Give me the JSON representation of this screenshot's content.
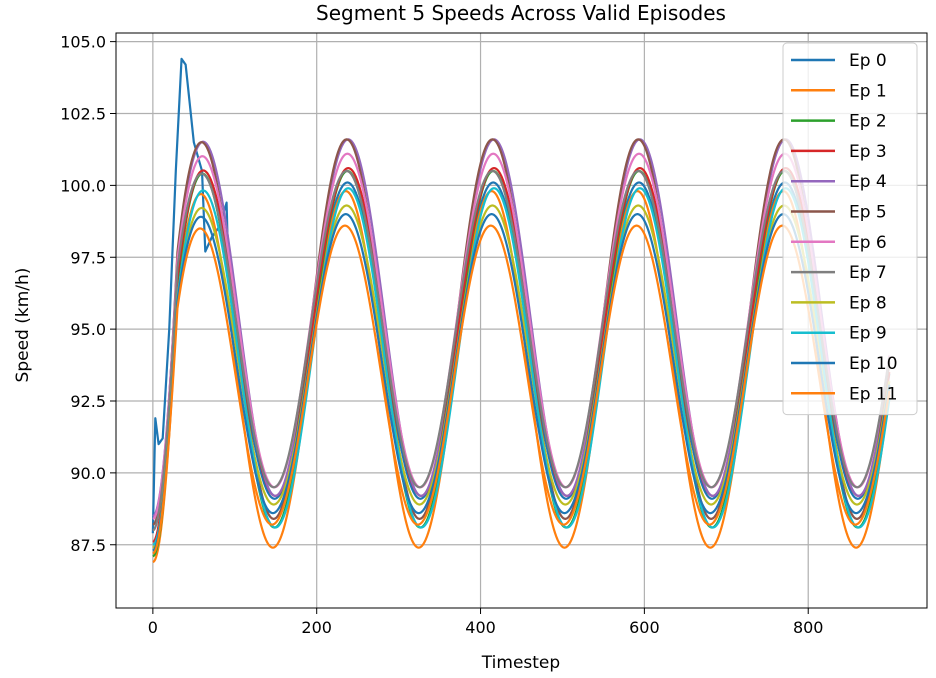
{
  "chart_data": {
    "type": "line",
    "title": "Segment 5 Speeds Across Valid Episodes",
    "xlabel": "Timestep",
    "ylabel": "Speed (km/h)",
    "xlim": [
      -45,
      945
    ],
    "ylim": [
      85.3,
      105.3
    ],
    "xticks": [
      0,
      200,
      400,
      600,
      800
    ],
    "xtick_labels": [
      "0",
      "200",
      "400",
      "600",
      "800"
    ],
    "yticks": [
      87.5,
      90.0,
      92.5,
      95.0,
      97.5,
      100.0,
      102.5,
      105.0
    ],
    "ytick_labels": [
      "87.5",
      "90.0",
      "92.5",
      "95.0",
      "97.5",
      "100.0",
      "102.5",
      "105.0"
    ],
    "grid": true,
    "legend_position": "top-right",
    "period": 178,
    "n_points": 900,
    "series": [
      {
        "name": "Ep 0",
        "color": "#1f77b4",
        "start": 87.9,
        "base": 94.6,
        "amp": 5.5,
        "phase": 0
      },
      {
        "name": "Ep 1",
        "color": "#ff7f0e",
        "start": 86.9,
        "base": 93.6,
        "amp": 6.2,
        "phase": 2
      },
      {
        "name": "Ep 2",
        "color": "#2ca02c",
        "start": 87.1,
        "base": 94.3,
        "amp": 6.2,
        "phase": 0
      },
      {
        "name": "Ep 3",
        "color": "#d62728",
        "start": 87.6,
        "base": 94.9,
        "amp": 5.7,
        "phase": -1
      },
      {
        "name": "Ep 4",
        "color": "#9467bd",
        "start": 88.5,
        "base": 95.4,
        "amp": 6.2,
        "phase": -1
      },
      {
        "name": "Ep 5",
        "color": "#8c564b",
        "start": 88.2,
        "base": 95.0,
        "amp": 6.6,
        "phase": 1
      },
      {
        "name": "Ep 6",
        "color": "#e377c2",
        "start": 88.4,
        "base": 95.3,
        "amp": 5.8,
        "phase": 0
      },
      {
        "name": "Ep 7",
        "color": "#7f7f7f",
        "start": 88.0,
        "base": 95.0,
        "amp": 5.5,
        "phase": 1
      },
      {
        "name": "Ep 8",
        "color": "#bcbd22",
        "start": 87.4,
        "base": 94.1,
        "amp": 5.2,
        "phase": 1
      },
      {
        "name": "Ep 9",
        "color": "#17becf",
        "start": 87.5,
        "base": 94.0,
        "amp": 5.9,
        "phase": -1
      },
      {
        "name": "Ep 10",
        "color": "#1f77b4",
        "start": 87.3,
        "base": 93.8,
        "amp": 5.2,
        "phase": 2
      },
      {
        "name": "Ep 11",
        "color": "#ff7f0e",
        "start": 87.2,
        "base": 93.4,
        "amp": 5.2,
        "phase": 3
      }
    ],
    "ep0_overrides": [
      [
        0,
        87.9
      ],
      [
        3,
        91.9
      ],
      [
        7,
        91.0
      ],
      [
        12,
        91.2
      ],
      [
        20,
        95.0
      ],
      [
        28,
        100.5
      ],
      [
        35,
        104.4
      ],
      [
        40,
        104.2
      ],
      [
        50,
        101.5
      ],
      [
        60,
        100.5
      ],
      [
        64,
        97.7
      ],
      [
        72,
        98.2
      ],
      [
        82,
        98.6
      ],
      [
        90,
        99.4
      ]
    ]
  }
}
